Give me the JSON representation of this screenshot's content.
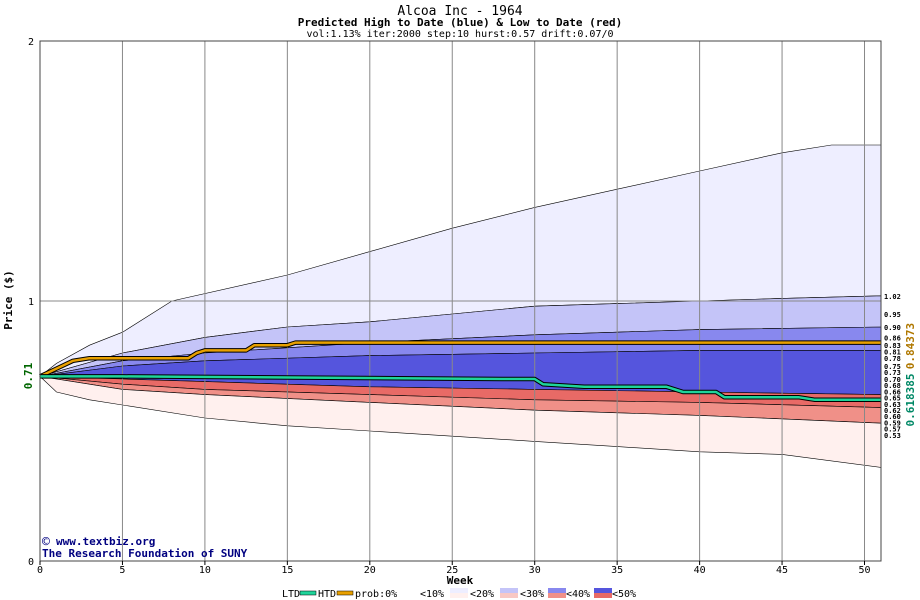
{
  "chart_data": {
    "type": "area",
    "title": "Alcoa Inc - 1964",
    "subtitle": "Predicted High to Date (blue) &  Low to Date (red)",
    "params": "vol:1.13% iter:2000 step:10 hurst:0.57 drift:0.07/0",
    "xlabel": "Week",
    "ylabel": "Price ($)",
    "xlim": [
      0,
      51
    ],
    "ylim": [
      0,
      2
    ],
    "x_ticks": [
      0,
      5,
      10,
      15,
      20,
      25,
      30,
      35,
      40,
      45,
      50
    ],
    "y_ticks": [
      0,
      1,
      2
    ],
    "grid": true,
    "start_price": 0.71,
    "start_price_label": "0.71",
    "htd_final_label": "0.84373",
    "ltd_final_label": "0.618385",
    "right_labels": [
      "1.02",
      "0.95",
      "0.90",
      "0.86",
      "0.83",
      "0.81",
      "0.78",
      "0.75",
      "0.73",
      "0.70",
      "0.68",
      "0.66",
      "0.65",
      "0.63",
      "0.62",
      "0.60",
      "0.59",
      "0.57",
      "0.53"
    ],
    "right_label_values": [
      1.02,
      0.95,
      0.9,
      0.86,
      0.83,
      0.81,
      0.78,
      0.75,
      0.73,
      0.7,
      0.68,
      0.66,
      0.65,
      0.63,
      0.62,
      0.6,
      0.59,
      0.57,
      0.53
    ],
    "bands": {
      "high_outer": [
        [
          0,
          0.71
        ],
        [
          1,
          0.76
        ],
        [
          3,
          0.83
        ],
        [
          5,
          0.88
        ],
        [
          8,
          1.0
        ],
        [
          15,
          1.1
        ],
        [
          20,
          1.19
        ],
        [
          25,
          1.28
        ],
        [
          30,
          1.36
        ],
        [
          35,
          1.43
        ],
        [
          40,
          1.5
        ],
        [
          45,
          1.57
        ],
        [
          48,
          1.6
        ],
        [
          51,
          1.6
        ]
      ],
      "high_mid": [
        [
          0,
          0.71
        ],
        [
          5,
          0.8
        ],
        [
          10,
          0.86
        ],
        [
          15,
          0.9
        ],
        [
          20,
          0.92
        ],
        [
          25,
          0.95
        ],
        [
          30,
          0.98
        ],
        [
          35,
          0.99
        ],
        [
          40,
          1.0
        ],
        [
          45,
          1.01
        ],
        [
          51,
          1.02
        ]
      ],
      "high_inner": [
        [
          0,
          0.71
        ],
        [
          5,
          0.77
        ],
        [
          10,
          0.8
        ],
        [
          20,
          0.84
        ],
        [
          30,
          0.87
        ],
        [
          40,
          0.89
        ],
        [
          51,
          0.9
        ]
      ],
      "high_core": [
        [
          0,
          0.71
        ],
        [
          5,
          0.75
        ],
        [
          10,
          0.77
        ],
        [
          20,
          0.79
        ],
        [
          30,
          0.8
        ],
        [
          40,
          0.81
        ],
        [
          51,
          0.81
        ]
      ],
      "low_core": [
        [
          0,
          0.71
        ],
        [
          5,
          0.7
        ],
        [
          10,
          0.69
        ],
        [
          20,
          0.67
        ],
        [
          30,
          0.66
        ],
        [
          40,
          0.65
        ],
        [
          51,
          0.64
        ]
      ],
      "low_inner": [
        [
          0,
          0.71
        ],
        [
          5,
          0.68
        ],
        [
          10,
          0.66
        ],
        [
          20,
          0.64
        ],
        [
          30,
          0.62
        ],
        [
          40,
          0.61
        ],
        [
          51,
          0.59
        ]
      ],
      "low_mid": [
        [
          0,
          0.71
        ],
        [
          5,
          0.66
        ],
        [
          10,
          0.64
        ],
        [
          20,
          0.61
        ],
        [
          30,
          0.58
        ],
        [
          40,
          0.56
        ],
        [
          51,
          0.53
        ]
      ],
      "low_outer": [
        [
          0,
          0.71
        ],
        [
          1,
          0.65
        ],
        [
          3,
          0.62
        ],
        [
          5,
          0.6
        ],
        [
          10,
          0.55
        ],
        [
          15,
          0.52
        ],
        [
          20,
          0.5
        ],
        [
          25,
          0.48
        ],
        [
          30,
          0.46
        ],
        [
          35,
          0.44
        ],
        [
          40,
          0.42
        ],
        [
          45,
          0.41
        ],
        [
          51,
          0.36
        ]
      ]
    },
    "series": [
      {
        "name": "HTD",
        "color": "#e8a000",
        "points": [
          [
            0,
            0.71
          ],
          [
            1,
            0.74
          ],
          [
            2,
            0.77
          ],
          [
            3,
            0.78
          ],
          [
            9,
            0.78
          ],
          [
            9.5,
            0.8
          ],
          [
            10,
            0.81
          ],
          [
            12.5,
            0.81
          ],
          [
            13,
            0.83
          ],
          [
            15,
            0.83
          ],
          [
            15.5,
            0.84
          ],
          [
            51,
            0.84
          ]
        ]
      },
      {
        "name": "LTD",
        "color": "#1fd49a",
        "points": [
          [
            0,
            0.71
          ],
          [
            1,
            0.71
          ],
          [
            5,
            0.71
          ],
          [
            28,
            0.7
          ],
          [
            30,
            0.7
          ],
          [
            30.5,
            0.68
          ],
          [
            33,
            0.67
          ],
          [
            38,
            0.67
          ],
          [
            39,
            0.65
          ],
          [
            41,
            0.65
          ],
          [
            41.5,
            0.63
          ],
          [
            46,
            0.63
          ],
          [
            47,
            0.62
          ],
          [
            51,
            0.62
          ]
        ]
      }
    ]
  },
  "watermark": {
    "site": "www.textbiz.org",
    "org": "The Research Foundation of SUNY"
  },
  "legend": {
    "ltd": "LTD",
    "htd": "HTD",
    "prob": "prob:0%",
    "b10": "<10%",
    "b20": "<20%",
    "b30": "<30%",
    "b40": "<40%",
    "b50": "<50%"
  },
  "colors": {
    "htd": "#e8a000",
    "ltd": "#1fd49a",
    "blue_light": "#eeeeff",
    "blue_mid": "#c4c4f8",
    "blue_strong": "#8888ee",
    "blue_core": "#5555dd",
    "red_light": "#fff0ee",
    "red_mid": "#f8c8c4",
    "red_strong": "#f09088",
    "red_core": "#e86a66"
  }
}
